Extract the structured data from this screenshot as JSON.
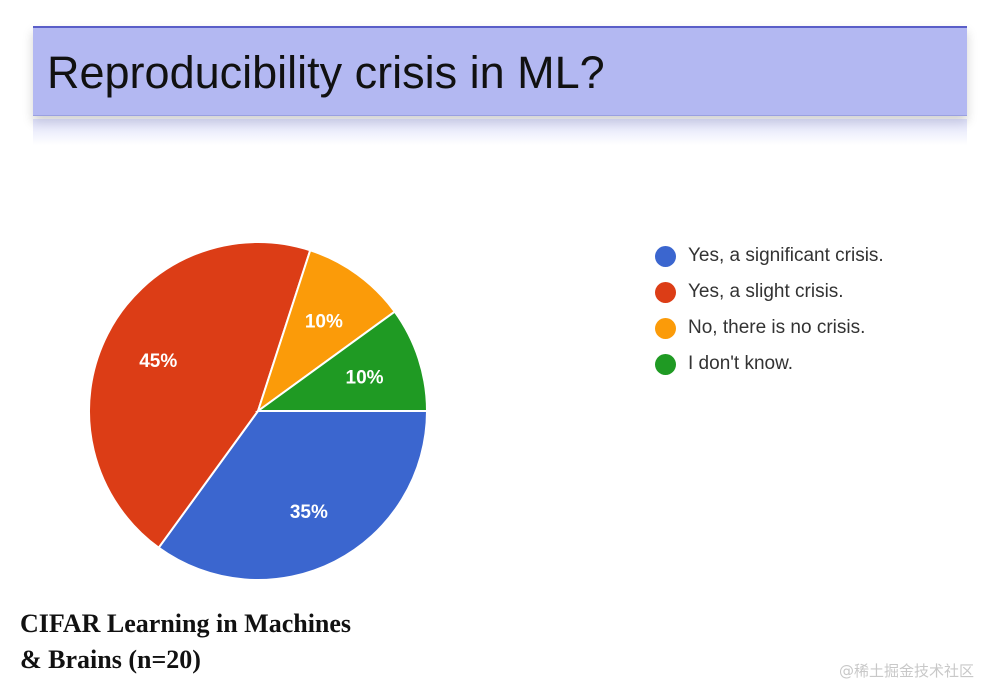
{
  "slide": {
    "title": "Reproducibility crisis in ML?",
    "caption_line1": "CIFAR Learning in Machines",
    "caption_line2": "& Brains (n=20)",
    "watermark": "@稀土掘金技术社区"
  },
  "chart_data": {
    "type": "pie",
    "title": "",
    "slices": [
      {
        "label": "Yes, a significant crisis.",
        "value": 35,
        "display": "35%",
        "color": "#3b66cf"
      },
      {
        "label": "Yes, a slight crisis.",
        "value": 45,
        "display": "45%",
        "color": "#dc3d16"
      },
      {
        "label": "No, there is no crisis.",
        "value": 10,
        "display": "10%",
        "color": "#fb9b09"
      },
      {
        "label": "I don't know.",
        "value": 10,
        "display": "10%",
        "color": "#1f9a23"
      }
    ],
    "start_angle": "3 o'clock, clockwise",
    "legend_position": "right"
  }
}
